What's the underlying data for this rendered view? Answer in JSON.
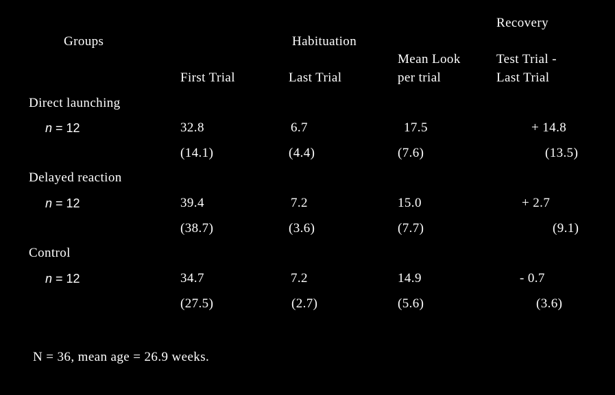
{
  "header": {
    "groups": "Groups",
    "habituation": "Habituation",
    "recovery": "Recovery",
    "first_trial": "First Trial",
    "last_trial": "Last Trial",
    "mean_look_1": "Mean Look",
    "mean_look_2": "per trial",
    "test_trial_1": "Test Trial -",
    "test_trial_2": "Last Trial"
  },
  "groups": [
    {
      "name": "Direct launching",
      "n_var": "n",
      "n_rest": " = 12",
      "first_mean": "32.8",
      "last_mean": "6.7",
      "look_mean": "17.5",
      "recovery_mean": "+ 14.8",
      "first_sd": "(14.1)",
      "last_sd": "(4.4)",
      "look_sd": "(7.6)",
      "recovery_sd": "(13.5)"
    },
    {
      "name": "Delayed reaction",
      "n_var": "n",
      "n_rest": " = 12",
      "first_mean": "39.4",
      "last_mean": "7.2",
      "look_mean": "15.0",
      "recovery_mean": "+ 2.7",
      "first_sd": "(38.7)",
      "last_sd": "(3.6)",
      "look_sd": "(7.7)",
      "recovery_sd": "(9.1)"
    },
    {
      "name": "Control",
      "n_var": "n",
      "n_rest": " = 12",
      "first_mean": "34.7",
      "last_mean": "7.2",
      "look_mean": "14.9",
      "recovery_mean": "- 0.7",
      "first_sd": "(27.5)",
      "last_sd": "(2.7)",
      "look_sd": "(5.6)",
      "recovery_sd": "(3.6)"
    }
  ],
  "footnote": "N = 36, mean age = 26.9 weeks."
}
